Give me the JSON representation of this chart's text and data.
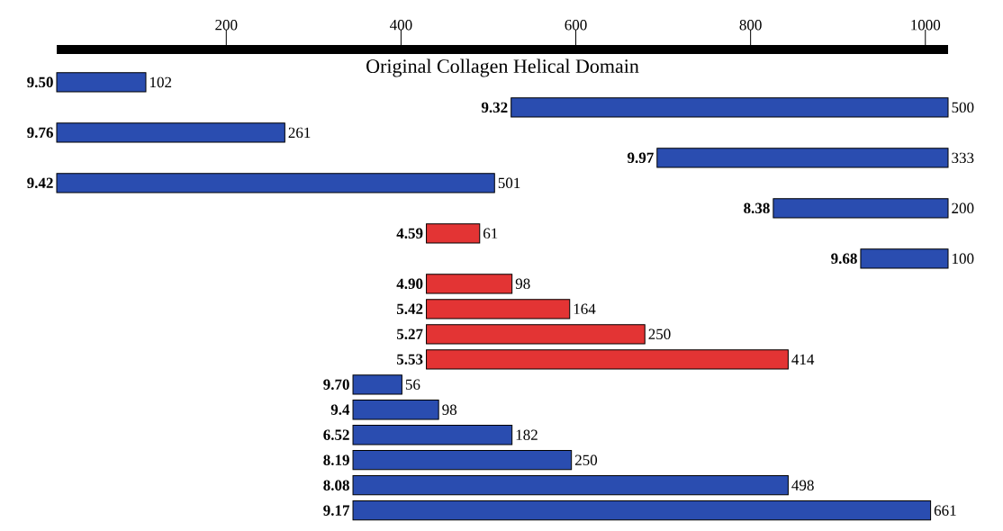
{
  "chart_data": {
    "type": "bar",
    "orientation": "horizontal",
    "title": "Original Collagen Helical Domain",
    "categories": [
      "9.50",
      "9.32",
      "9.76",
      "9.97",
      "9.42",
      "8.38",
      "4.59",
      "9.68",
      "4.90",
      "5.42",
      "5.27",
      "5.53",
      "9.70",
      "9.4",
      "6.52",
      "8.19",
      "8.08",
      "9.17"
    ],
    "values": [
      102,
      500,
      261,
      333,
      501,
      200,
      61,
      100,
      98,
      164,
      250,
      414,
      56,
      98,
      182,
      250,
      498,
      661
    ],
    "base": [
      6,
      526,
      6,
      693,
      6,
      826,
      429,
      926,
      429,
      429,
      429,
      429,
      345,
      345,
      345,
      345,
      345,
      345
    ],
    "colors": [
      "#2a4db0",
      "#2a4db0",
      "#2a4db0",
      "#2a4db0",
      "#2a4db0",
      "#2a4db0",
      "#e33434",
      "#2a4db0",
      "#e33434",
      "#e33434",
      "#e33434",
      "#e33434",
      "#2a4db0",
      "#2a4db0",
      "#2a4db0",
      "#2a4db0",
      "#2a4db0",
      "#2a4db0"
    ],
    "xlim": [
      6,
      1026
    ],
    "xticks": [
      200,
      400,
      600,
      800,
      1000
    ],
    "data_labels": true
  }
}
